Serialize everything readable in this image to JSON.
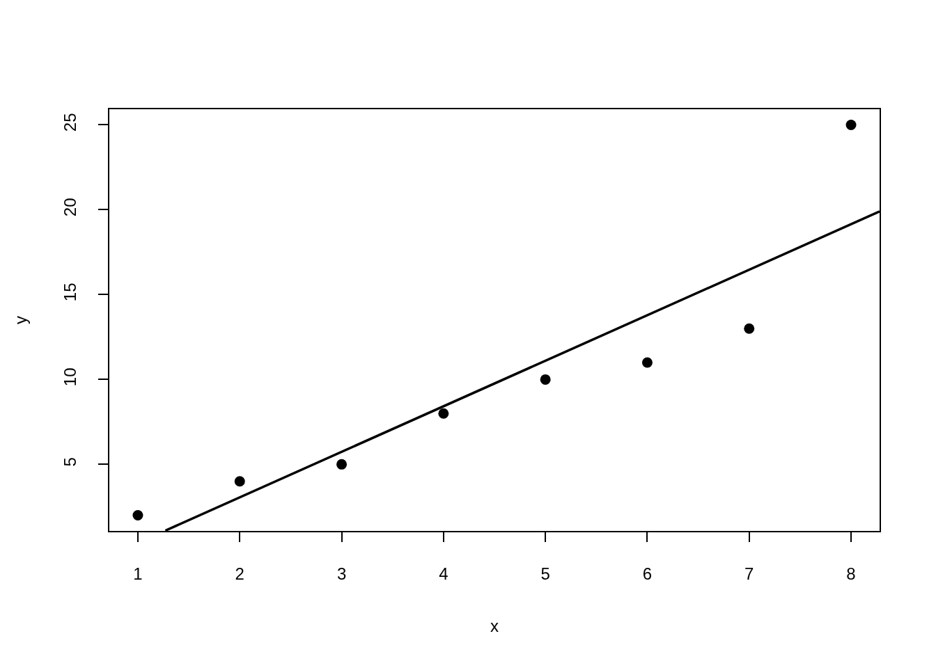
{
  "chart_data": {
    "type": "scatter",
    "xlabel": "x",
    "ylabel": "y",
    "series": [
      {
        "color": "#000000",
        "x": [
          1,
          2,
          3,
          4,
          5,
          6,
          7,
          8
        ],
        "values": [
          2,
          4,
          5,
          8,
          10,
          11,
          13,
          25
        ],
        "marker": "circle"
      },
      {
        "type": "line",
        "color": "#000000",
        "x": [
          1.27,
          8.28
        ],
        "values": [
          1.1,
          19.9
        ],
        "marker": "none",
        "line_style": "solid"
      }
    ],
    "xlim": [
      0.72,
      8.28
    ],
    "ylim": [
      1.08,
      25.92
    ],
    "xticks": [
      1,
      2,
      3,
      4,
      5,
      6,
      7,
      8
    ],
    "yticks": [
      5,
      10,
      15,
      20,
      25
    ]
  }
}
